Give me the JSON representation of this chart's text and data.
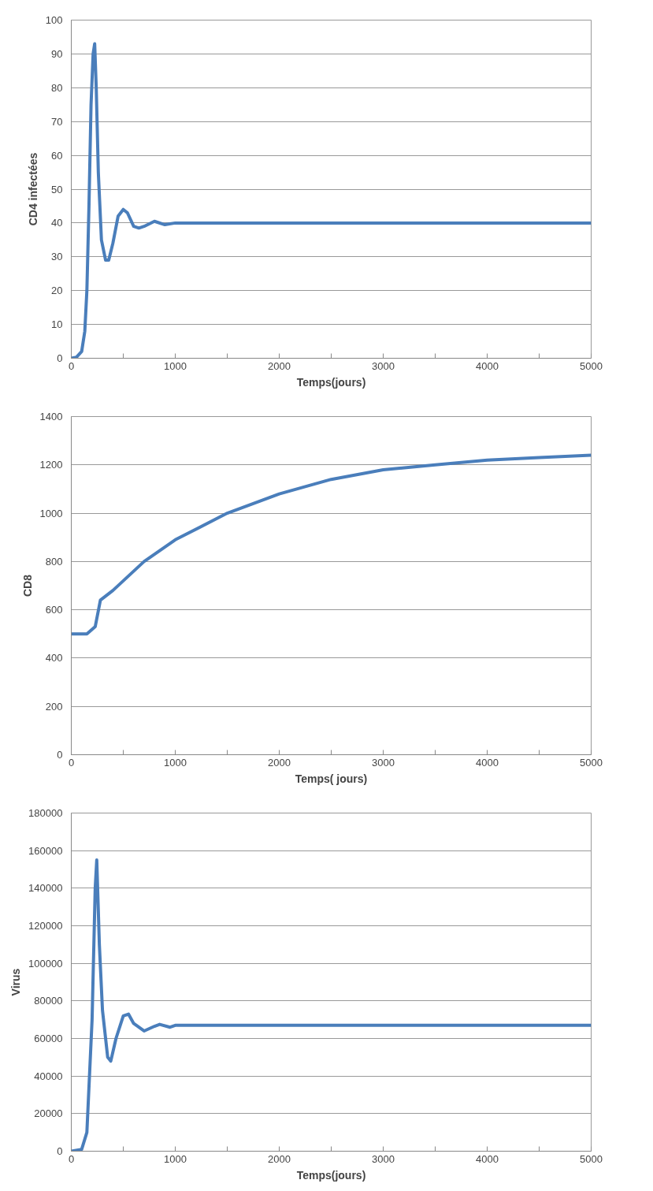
{
  "chart_data": [
    {
      "type": "line",
      "xlabel": "Temps(jours)",
      "ylabel": "CD4 infectées",
      "color": "#4a7ebb",
      "grid": "y",
      "x": [
        0,
        50,
        100,
        130,
        150,
        170,
        190,
        210,
        225,
        240,
        260,
        290,
        330,
        360,
        400,
        450,
        500,
        540,
        600,
        650,
        700,
        800,
        900,
        1000,
        5000
      ],
      "values": [
        0,
        0.3,
        2,
        8,
        20,
        45,
        75,
        90,
        93,
        80,
        55,
        35,
        29,
        29,
        34,
        42,
        44,
        43,
        39,
        38.5,
        39,
        40.5,
        39.5,
        40,
        40
      ],
      "xlim": [
        0,
        5000
      ],
      "ylim": [
        0,
        100
      ],
      "xticks": [
        0,
        {
          "value": 500,
          "label": null
        },
        1000,
        {
          "value": 1500,
          "label": null
        },
        2000,
        {
          "value": 2500,
          "label": null
        },
        3000,
        {
          "value": 3500,
          "label": null
        },
        4000,
        {
          "value": 4500,
          "label": null
        },
        5000
      ],
      "yticks": [
        0,
        10,
        20,
        30,
        40,
        50,
        60,
        70,
        80,
        90,
        100
      ]
    },
    {
      "type": "line",
      "xlabel": "Temps( jours)",
      "ylabel": "CD8",
      "color": "#4a7ebb",
      "grid": "y",
      "x": [
        0,
        150,
        230,
        280,
        400,
        500,
        700,
        1000,
        1500,
        2000,
        2500,
        3000,
        3500,
        4000,
        4500,
        5000
      ],
      "values": [
        500,
        500,
        530,
        640,
        680,
        720,
        800,
        890,
        1000,
        1080,
        1140,
        1180,
        1200,
        1220,
        1230,
        1240
      ],
      "xlim": [
        0,
        5000
      ],
      "ylim": [
        0,
        1400
      ],
      "xticks": [
        0,
        {
          "value": 500,
          "label": null
        },
        1000,
        {
          "value": 1500,
          "label": null
        },
        2000,
        {
          "value": 2500,
          "label": null
        },
        3000,
        {
          "value": 3500,
          "label": null
        },
        4000,
        {
          "value": 4500,
          "label": null
        },
        5000
      ],
      "yticks": [
        0,
        200,
        400,
        600,
        800,
        1000,
        1200,
        1400
      ]
    },
    {
      "type": "line",
      "xlabel": "Temps(jours)",
      "ylabel": "Virus",
      "color": "#4a7ebb",
      "grid": "y",
      "x": [
        0,
        100,
        150,
        200,
        230,
        245,
        270,
        300,
        350,
        380,
        430,
        500,
        550,
        600,
        700,
        800,
        850,
        950,
        1000,
        5000
      ],
      "values": [
        0,
        1000,
        10000,
        70000,
        140000,
        155000,
        110000,
        75000,
        50000,
        48000,
        60000,
        72000,
        73000,
        68000,
        64000,
        66500,
        67500,
        66000,
        67000,
        67000
      ],
      "xlim": [
        0,
        5000
      ],
      "ylim": [
        0,
        180000
      ],
      "xticks": [
        0,
        {
          "value": 500,
          "label": null
        },
        1000,
        {
          "value": 1500,
          "label": null
        },
        2000,
        {
          "value": 2500,
          "label": null
        },
        3000,
        {
          "value": 3500,
          "label": null
        },
        4000,
        {
          "value": 4500,
          "label": null
        },
        5000
      ],
      "yticks": [
        0,
        20000,
        40000,
        60000,
        80000,
        100000,
        120000,
        140000,
        160000,
        180000
      ]
    }
  ]
}
